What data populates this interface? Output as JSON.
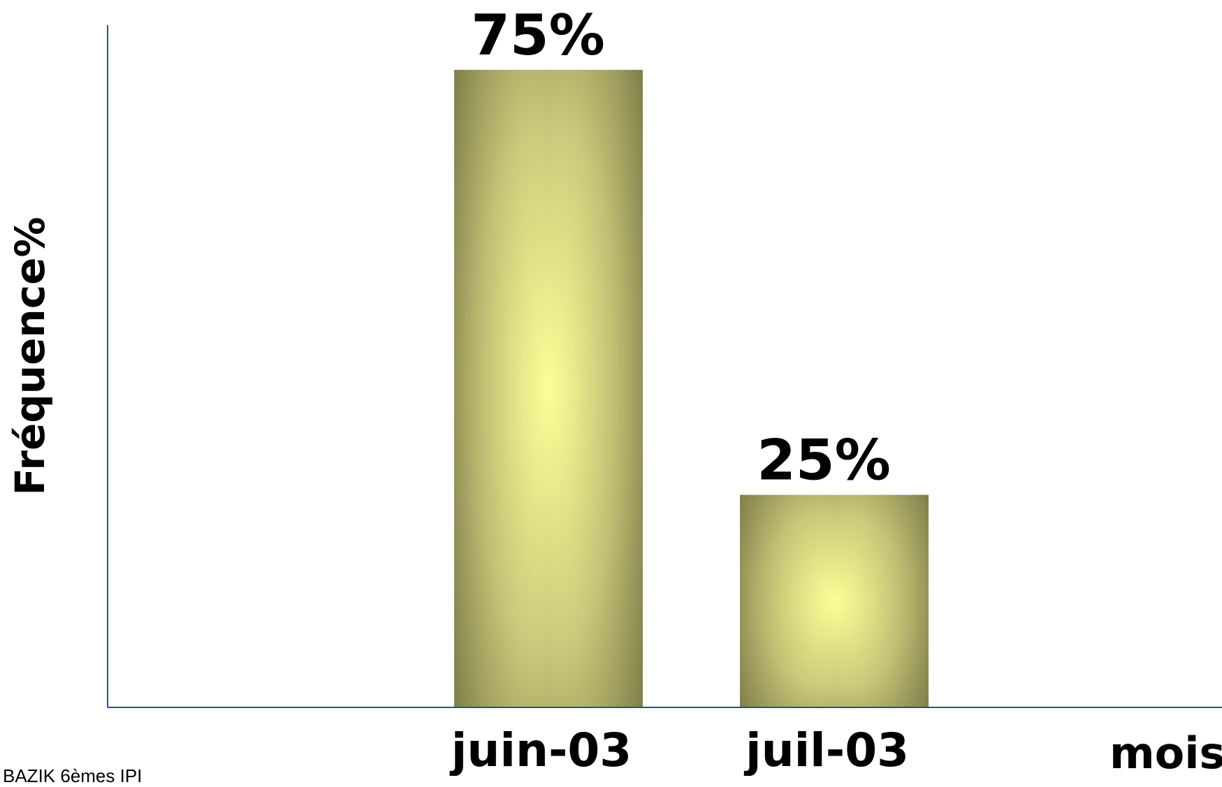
{
  "chart_data": {
    "type": "bar",
    "categories": [
      "juin-03",
      "juil-03"
    ],
    "values": [
      75,
      25
    ],
    "value_labels": [
      "75%",
      "25%"
    ],
    "xlabel": "mois",
    "ylabel": "Fréquence%",
    "ylim": [
      0,
      100
    ],
    "grid": false,
    "legend": "none",
    "bar_color_edge": "#7b7a47",
    "bar_color_center": "#fbff96",
    "axis_color": "#2f4f7f"
  },
  "footer": {
    "text": "BAZIK  6èmes  IPI"
  }
}
